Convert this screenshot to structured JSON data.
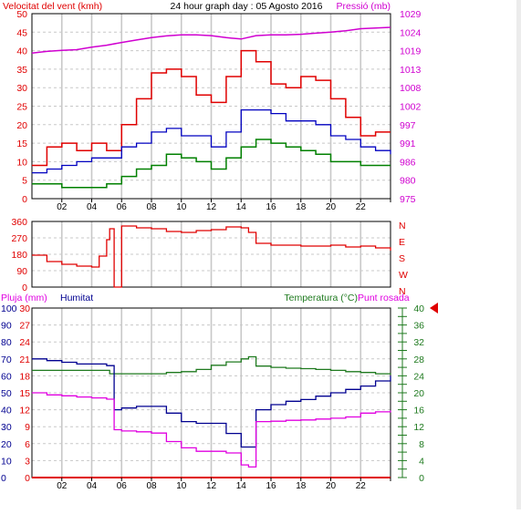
{
  "header": {
    "left_title": "Velocitat del vent (kmh)",
    "center_title": "24 hour graph day : 05 Agosto 2016",
    "right_title": "Pressió (mb)"
  },
  "colors": {
    "wind_gust": "#e00000",
    "wind_avg": "#0000c0",
    "wind_min": "#008000",
    "pressure": "#d000d0",
    "humidity": "#000090",
    "temperature": "#1f7a1f",
    "dew_point": "#e000e0",
    "rain": "#e00000",
    "direction": "#e00000",
    "grid": "#c8c8c8",
    "marker": "#e00000"
  },
  "chart_data": [
    {
      "id": "wind_pressure",
      "type": "line",
      "title": "24 hour graph day : 05 Agosto 2016",
      "ylabel_left": "Velocitat del vent (kmh)",
      "ylabel_right": "Pressió (mb)",
      "x_ticks": [
        "02",
        "04",
        "06",
        "08",
        "10",
        "12",
        "14",
        "16",
        "18",
        "20",
        "22",
        ""
      ],
      "xlim": [
        0,
        24
      ],
      "ylim_left": [
        0,
        50
      ],
      "ylim_right": [
        975,
        1029
      ],
      "y_ticks_left": [
        "0",
        "5",
        "10",
        "15",
        "20",
        "25",
        "30",
        "35",
        "40",
        "45",
        "50"
      ],
      "y_ticks_right": [
        "975",
        "980",
        "986",
        "991",
        "997",
        "1002",
        "1008",
        "1013",
        "1019",
        "1024",
        "1029"
      ],
      "grid": true,
      "series": [
        {
          "key": "wind_gust",
          "axis": "left",
          "x": [
            0,
            1,
            2,
            3,
            4,
            5,
            6,
            7,
            8,
            9,
            10,
            11,
            12,
            13,
            14,
            15,
            16,
            17,
            18,
            19,
            20,
            21,
            22,
            23,
            24
          ],
          "values": [
            9,
            14,
            15,
            13,
            15,
            13,
            20,
            27,
            34,
            35,
            33,
            28,
            26,
            33,
            40,
            37,
            31,
            30,
            33,
            32,
            27,
            22,
            17,
            18,
            18
          ]
        },
        {
          "key": "wind_avg",
          "axis": "left",
          "x": [
            0,
            1,
            2,
            3,
            4,
            5,
            6,
            7,
            8,
            9,
            10,
            11,
            12,
            13,
            14,
            15,
            16,
            17,
            18,
            19,
            20,
            21,
            22,
            23,
            24
          ],
          "values": [
            7,
            8,
            9,
            10,
            11,
            11,
            14,
            15,
            18,
            19,
            17,
            17,
            14,
            18,
            24,
            24,
            23,
            21,
            21,
            20,
            17,
            16,
            14,
            13,
            12
          ]
        },
        {
          "key": "wind_min",
          "axis": "left",
          "x": [
            0,
            1,
            2,
            3,
            4,
            5,
            6,
            7,
            8,
            9,
            10,
            11,
            12,
            13,
            14,
            15,
            16,
            17,
            18,
            19,
            20,
            21,
            22,
            23,
            24
          ],
          "values": [
            4,
            4,
            3,
            3,
            3,
            4,
            6,
            8,
            9,
            12,
            11,
            10,
            8,
            11,
            14,
            16,
            15,
            14,
            13,
            12,
            10,
            10,
            9,
            9,
            9
          ]
        },
        {
          "key": "pressure",
          "axis": "right",
          "x": [
            0,
            1,
            2,
            3,
            4,
            5,
            6,
            7,
            8,
            9,
            10,
            11,
            12,
            13,
            14,
            15,
            16,
            17,
            18,
            19,
            20,
            21,
            22,
            23,
            24
          ],
          "values": [
            1017.5,
            1018,
            1018.3,
            1018.5,
            1019.2,
            1019.8,
            1020.6,
            1021.3,
            1022,
            1022.5,
            1022.8,
            1022.8,
            1022.6,
            1022,
            1021.6,
            1022.6,
            1022.8,
            1022.8,
            1023,
            1023.3,
            1023.6,
            1024,
            1024.6,
            1024.8,
            1025
          ]
        }
      ]
    },
    {
      "id": "wind_direction",
      "type": "line",
      "x_ticks": [],
      "xlim": [
        0,
        24
      ],
      "ylim": [
        0,
        360
      ],
      "y_ticks": [
        "0",
        "90",
        "180",
        "270",
        "360"
      ],
      "y_ticks_right": [
        "N",
        "W",
        "S",
        "E",
        "N"
      ],
      "grid": true,
      "series": [
        {
          "key": "direction",
          "x": [
            0,
            1,
            2,
            3,
            4,
            4.5,
            5,
            5.2,
            5.5,
            6,
            7,
            8,
            9,
            10,
            11,
            12,
            13,
            14,
            14.5,
            15,
            16,
            17,
            18,
            19,
            20,
            21,
            22,
            23,
            24
          ],
          "values": [
            175,
            140,
            125,
            115,
            110,
            170,
            260,
            320,
            0,
            335,
            325,
            320,
            305,
            300,
            310,
            315,
            330,
            325,
            300,
            240,
            230,
            230,
            225,
            225,
            230,
            220,
            225,
            215,
            200
          ]
        }
      ]
    },
    {
      "id": "rain_humidity_temperature",
      "type": "line",
      "labels": {
        "rain": "Pluja (mm)",
        "humidity": "Humitat",
        "temperature": "Temperatura (°C)",
        "dew_point": "Punt rosada"
      },
      "x_ticks": [
        "02",
        "04",
        "06",
        "08",
        "10",
        "12",
        "14",
        "16",
        "18",
        "20",
        "22",
        ""
      ],
      "xlim": [
        0,
        24
      ],
      "ylim_rain": [
        0,
        30
      ],
      "ylim_humidity": [
        0,
        100
      ],
      "ylim_temperature": [
        0,
        40
      ],
      "y_ticks_rain": [
        "0",
        "3",
        "6",
        "9",
        "12",
        "15",
        "18",
        "21",
        "24",
        "27",
        "30"
      ],
      "y_ticks_humidity": [
        "0",
        "10",
        "20",
        "30",
        "40",
        "50",
        "60",
        "70",
        "80",
        "90",
        "100"
      ],
      "y_ticks_temperature": [
        "0",
        "2",
        "4",
        "6",
        "8",
        "10",
        "12",
        "14",
        "16",
        "18",
        "20",
        "22",
        "24",
        "26",
        "28",
        "30",
        "32",
        "34",
        "36",
        "38",
        "40"
      ],
      "y_ticks_temperature_shown": [
        "0",
        "4",
        "8",
        "12",
        "16",
        "20",
        "24",
        "28",
        "32",
        "36",
        "40"
      ],
      "current_marker": 40,
      "grid": true,
      "series": [
        {
          "key": "temperature",
          "axis": "temperature",
          "x": [
            0,
            1,
            2,
            3,
            4,
            5,
            5.2,
            6,
            7,
            8,
            9,
            10,
            11,
            12,
            13,
            14,
            14.5,
            15,
            16,
            17,
            18,
            19,
            20,
            21,
            22,
            23,
            24
          ],
          "values": [
            25.3,
            25.3,
            25.3,
            25.3,
            25.3,
            25.3,
            24.5,
            24.5,
            24.5,
            24.5,
            24.8,
            25,
            25.5,
            26.5,
            27.3,
            28,
            28.5,
            26.3,
            26,
            25.8,
            25.7,
            25.5,
            25.3,
            25,
            24.8,
            24.5,
            24.3
          ]
        },
        {
          "key": "humidity",
          "axis": "humidity",
          "x": [
            0,
            1,
            2,
            3,
            4,
            5,
            5.5,
            6,
            7,
            8,
            9,
            10,
            11,
            12,
            13,
            14,
            14.5,
            15,
            16,
            17,
            18,
            19,
            20,
            21,
            22,
            23,
            24
          ],
          "values": [
            70,
            69,
            68,
            67,
            67,
            66,
            40,
            41,
            42,
            42,
            38,
            33,
            32,
            32,
            26,
            18,
            18,
            40,
            43,
            45,
            46,
            48,
            50,
            52,
            54,
            57,
            60
          ]
        },
        {
          "key": "dew_point",
          "axis": "temperature",
          "x": [
            0,
            1,
            2,
            3,
            4,
            5,
            5.5,
            6,
            7,
            8,
            9,
            10,
            11,
            12,
            13,
            14,
            14.5,
            15,
            16,
            17,
            18,
            19,
            20,
            21,
            22,
            23,
            24
          ],
          "values": [
            20,
            19.5,
            19.3,
            19,
            18.8,
            18.5,
            11.3,
            11,
            10.8,
            10.5,
            8.5,
            7,
            6.2,
            6.2,
            5.8,
            3,
            2.5,
            13.2,
            13.3,
            13.5,
            13.6,
            13.8,
            14,
            14.3,
            15.2,
            15.5,
            15.8
          ]
        },
        {
          "key": "rain",
          "axis": "rain",
          "x": [
            0,
            24
          ],
          "values": [
            0,
            0
          ]
        }
      ]
    }
  ]
}
